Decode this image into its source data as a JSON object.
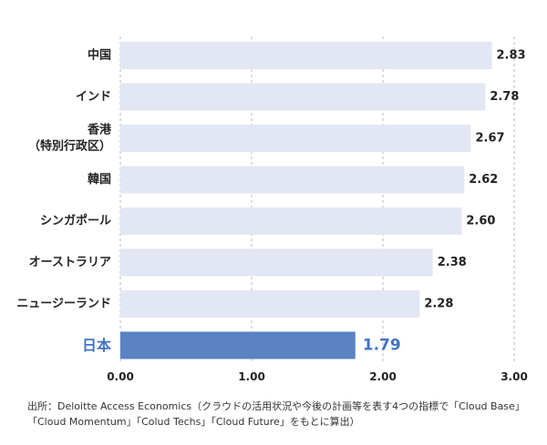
{
  "chart_data": {
    "type": "bar",
    "orientation": "horizontal",
    "categories": [
      [
        "中国"
      ],
      [
        "インド"
      ],
      [
        "香港",
        "（特別行政区）"
      ],
      [
        "韓国"
      ],
      [
        "シンガポール"
      ],
      [
        "オーストラリア"
      ],
      [
        "ニュージーランド"
      ],
      [
        "日本"
      ]
    ],
    "values": [
      2.83,
      2.78,
      2.67,
      2.62,
      2.6,
      2.38,
      2.28,
      1.79
    ],
    "value_labels": [
      "2.83",
      "2.78",
      "2.67",
      "2.62",
      "2.60",
      "2.38",
      "2.28",
      "1.79"
    ],
    "highlight_index": 7,
    "xlim": [
      0,
      3
    ],
    "x_ticks": [
      0,
      1,
      2,
      3
    ],
    "x_tick_labels": [
      "0.00",
      "1.00",
      "2.00",
      "3.00"
    ],
    "grid": "vertical dashed",
    "colors": {
      "bar": "#e3e6f3",
      "highlight_bar": "#5b82c2",
      "highlight_text": "#4472c4",
      "text": "#222222",
      "grid": "#b8b8b8"
    }
  },
  "source": {
    "line1": "出所：Deloitte Access Economics（クラウドの活用状況や今後の計画等を表す4つの指標で「Cloud Base」",
    "line2": "「Cloud Momentum」「Colud Techs」「Cloud Future」をもとに算出）"
  }
}
